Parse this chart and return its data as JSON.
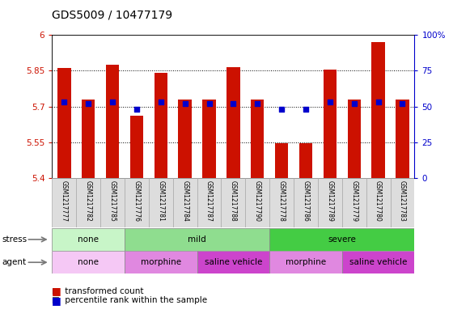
{
  "title": "GDS5009 / 10477179",
  "samples": [
    "GSM1217777",
    "GSM1217782",
    "GSM1217785",
    "GSM1217776",
    "GSM1217781",
    "GSM1217784",
    "GSM1217787",
    "GSM1217788",
    "GSM1217790",
    "GSM1217778",
    "GSM1217786",
    "GSM1217789",
    "GSM1217779",
    "GSM1217780",
    "GSM1217783"
  ],
  "transformed_count": [
    5.86,
    5.73,
    5.875,
    5.66,
    5.84,
    5.73,
    5.73,
    5.865,
    5.73,
    5.545,
    5.545,
    5.855,
    5.73,
    5.97,
    5.73
  ],
  "percentile_rank": [
    53,
    52,
    53,
    48,
    53,
    52,
    52,
    52,
    52,
    48,
    48,
    53,
    52,
    53,
    52
  ],
  "ylim_left": [
    5.4,
    6.0
  ],
  "ylim_right": [
    0,
    100
  ],
  "yticks_left": [
    5.4,
    5.55,
    5.7,
    5.85,
    6.0
  ],
  "yticks_right": [
    0,
    25,
    50,
    75,
    100
  ],
  "hlines": [
    5.55,
    5.7,
    5.85
  ],
  "stress_groups": [
    {
      "label": "none",
      "start": 0,
      "end": 3,
      "color": "#c8f5c8"
    },
    {
      "label": "mild",
      "start": 3,
      "end": 9,
      "color": "#8fdd8f"
    },
    {
      "label": "severe",
      "start": 9,
      "end": 15,
      "color": "#44cc44"
    }
  ],
  "agent_groups": [
    {
      "label": "none",
      "start": 0,
      "end": 3,
      "color": "#f5c8f5"
    },
    {
      "label": "morphine",
      "start": 3,
      "end": 6,
      "color": "#e088e0"
    },
    {
      "label": "saline vehicle",
      "start": 6,
      "end": 9,
      "color": "#cc44cc"
    },
    {
      "label": "morphine",
      "start": 9,
      "end": 12,
      "color": "#e088e0"
    },
    {
      "label": "saline vehicle",
      "start": 12,
      "end": 15,
      "color": "#cc44cc"
    }
  ],
  "bar_color": "#cc1100",
  "dot_color": "#0000cc",
  "bar_width": 0.55,
  "left_axis_color": "#cc1100",
  "right_axis_color": "#0000cc"
}
